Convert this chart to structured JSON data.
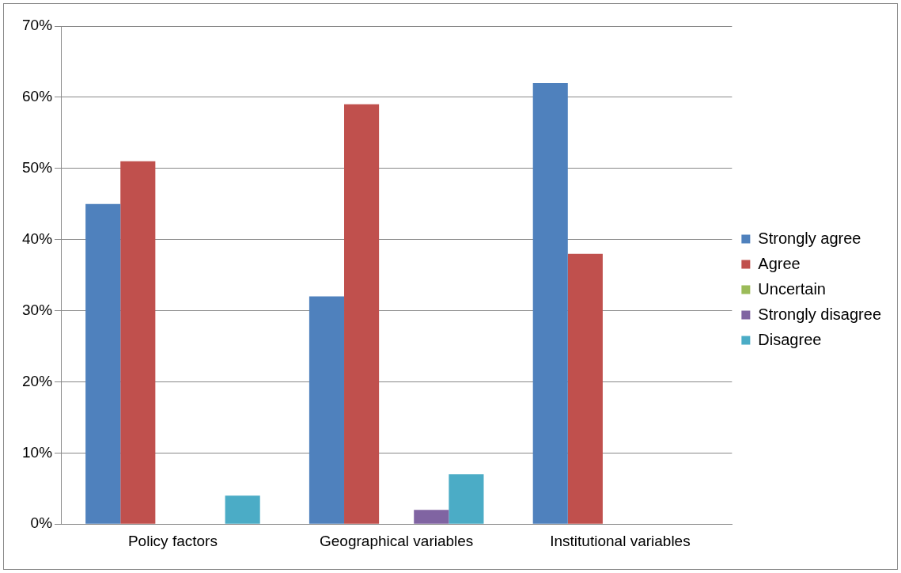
{
  "chart_data": {
    "type": "bar",
    "categories": [
      "Policy factors",
      "Geographical variables",
      "Institutional variables"
    ],
    "series": [
      {
        "name": "Strongly agree",
        "color": "#4f81bd",
        "values": [
          45,
          32,
          62
        ]
      },
      {
        "name": "Agree",
        "color": "#c0504d",
        "values": [
          51,
          59,
          38
        ]
      },
      {
        "name": "Uncertain",
        "color": "#9bbb59",
        "values": [
          0,
          0,
          0
        ]
      },
      {
        "name": "Strongly disagree",
        "color": "#8064a2",
        "values": [
          0,
          2,
          0
        ]
      },
      {
        "name": "Disagree",
        "color": "#4bacc6",
        "values": [
          4,
          7,
          0
        ]
      }
    ],
    "ylim": [
      0,
      70
    ],
    "yticks": [
      {
        "value": 0,
        "label": "0%"
      },
      {
        "value": 10,
        "label": "10%"
      },
      {
        "value": 20,
        "label": "20%"
      },
      {
        "value": 30,
        "label": "30%"
      },
      {
        "value": 40,
        "label": "40%"
      },
      {
        "value": 50,
        "label": "50%"
      },
      {
        "value": 60,
        "label": "60%"
      },
      {
        "value": 70,
        "label": "70%"
      }
    ],
    "grid": "y",
    "legend": "right"
  }
}
